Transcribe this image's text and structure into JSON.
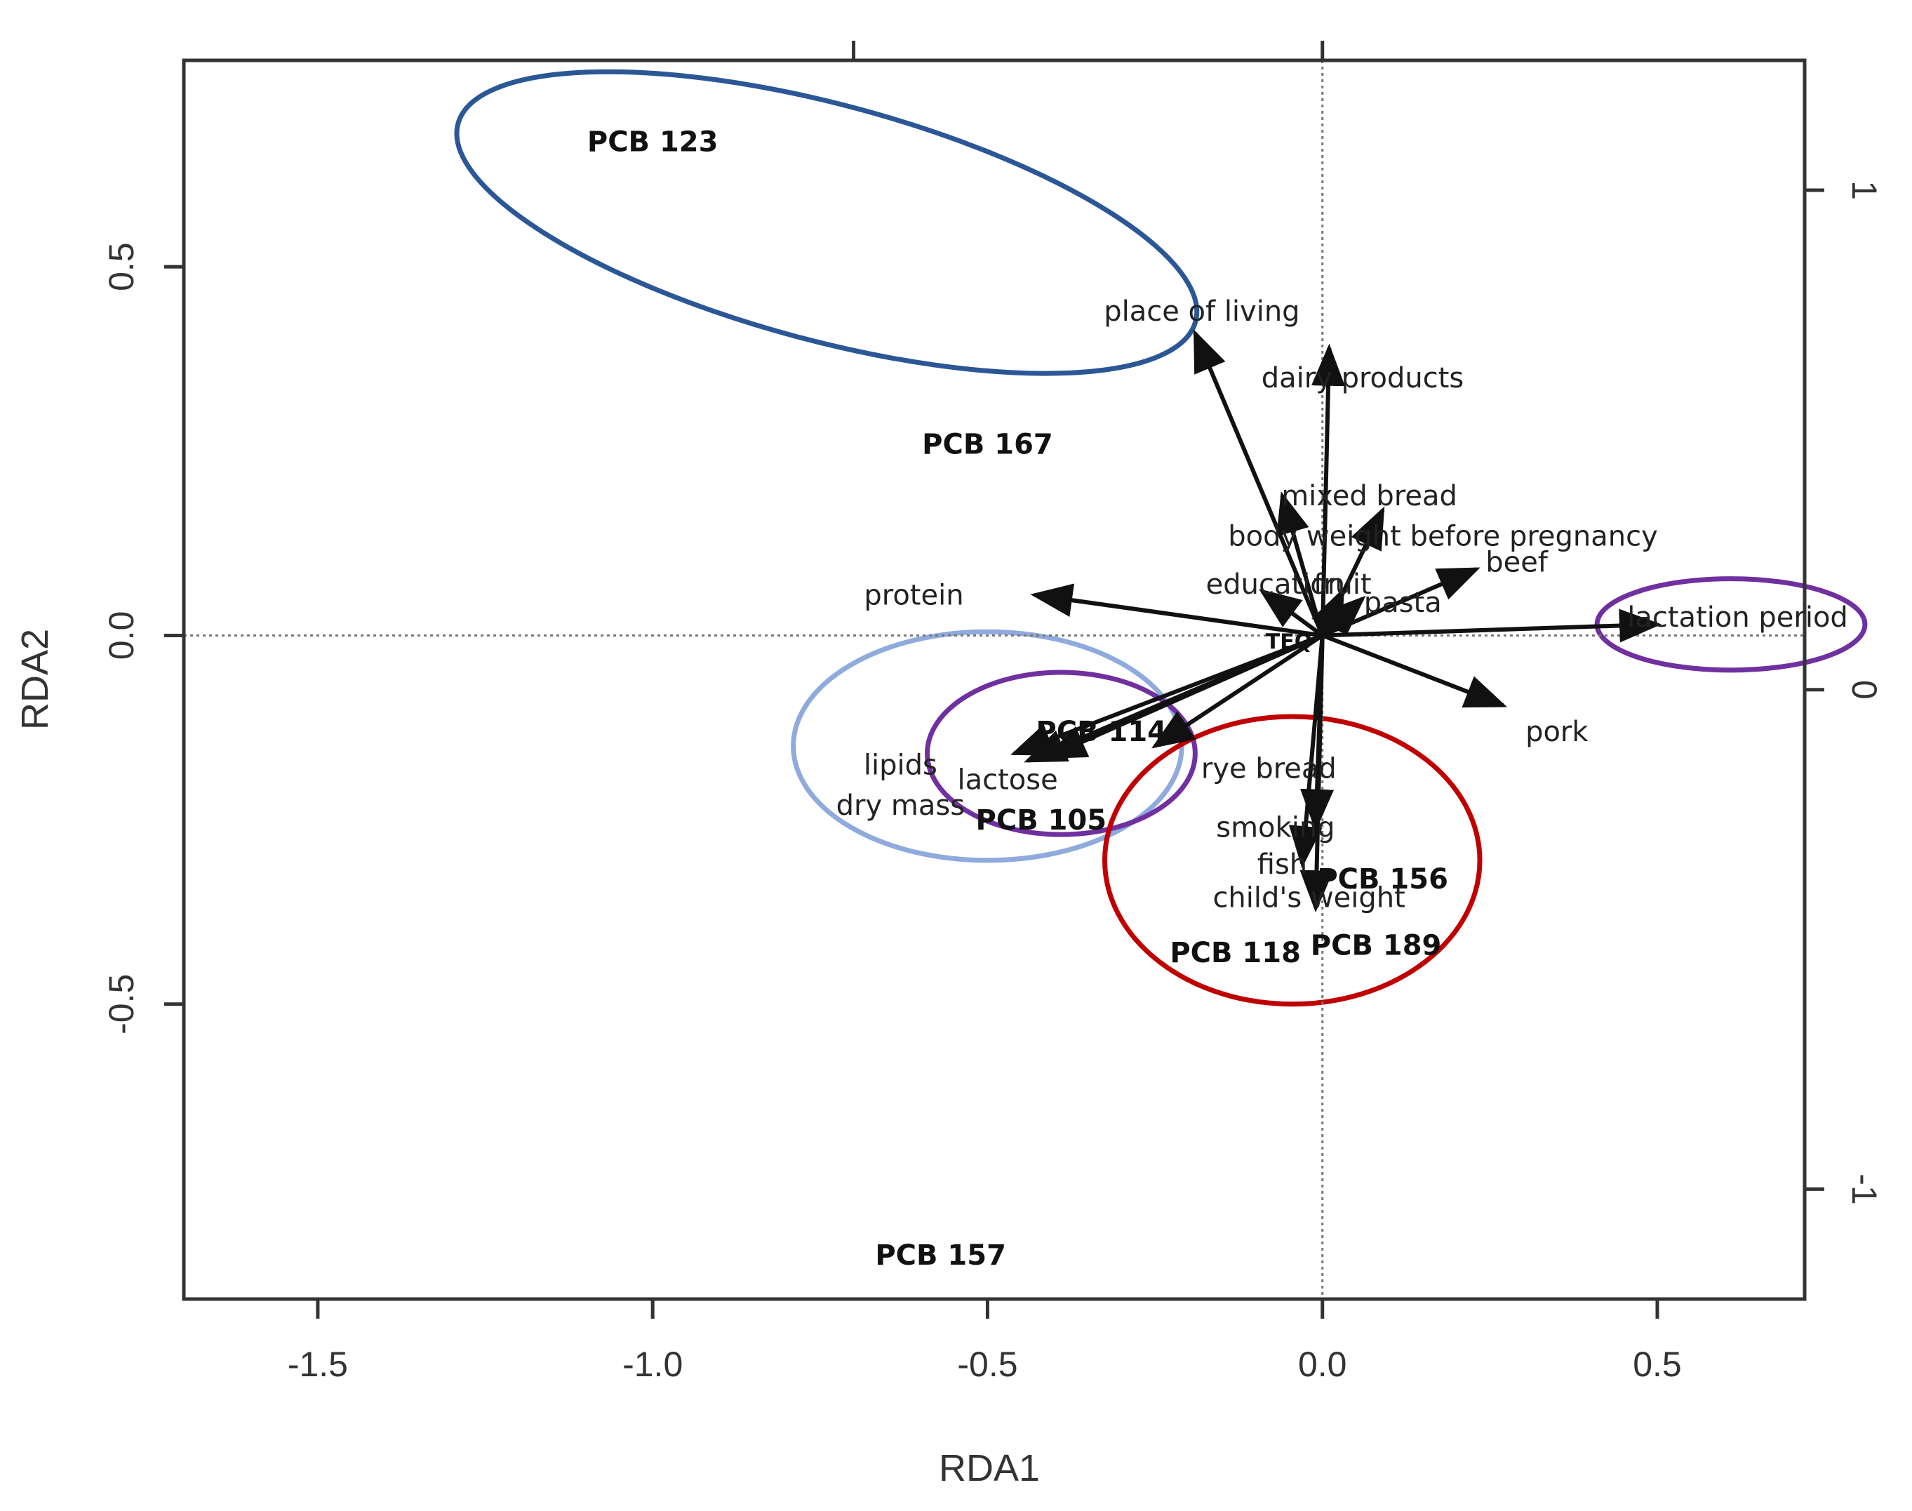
{
  "chart_data": {
    "type": "scatter",
    "title": "",
    "xlabel": "RDA1",
    "ylabel": "RDA2",
    "xlim": [
      -1.7,
      0.72
    ],
    "ylim": [
      -0.9,
      0.78
    ],
    "x_ticks": [
      -1.5,
      -1.0,
      -0.5,
      0.0,
      0.5
    ],
    "x_tick_labels": [
      "-1.5",
      "-1.0",
      "-0.5",
      "0.0",
      "0.5"
    ],
    "y_ticks": [
      -0.5,
      0.0,
      0.5
    ],
    "y_tick_labels": [
      "-0.5",
      "0.0",
      "0.5"
    ],
    "secondary_ticks": [
      -1,
      0,
      1
    ],
    "secondary_tick_labels": [
      "-1",
      "0",
      "1"
    ],
    "secondary_axis_range": [
      -1.22,
      1.26
    ],
    "reference_lines": [
      {
        "axis": "x",
        "value": 0
      },
      {
        "axis": "y",
        "value": 0
      }
    ],
    "vectors": [
      {
        "label": "place of living",
        "x": -0.19,
        "y": 0.41,
        "label_x": -0.18,
        "label_y": 0.44
      },
      {
        "label": "dairy products",
        "x": 0.01,
        "y": 0.39,
        "label_x": 0.06,
        "label_y": 0.35
      },
      {
        "label": "mixed bread",
        "x": -0.06,
        "y": 0.19,
        "label_x": 0.07,
        "label_y": 0.19
      },
      {
        "label": "body weight before pregnancy",
        "x": 0.09,
        "y": 0.17,
        "label_x": 0.18,
        "label_y": 0.135
      },
      {
        "label": "beef",
        "x": 0.23,
        "y": 0.09,
        "label_x": 0.29,
        "label_y": 0.1
      },
      {
        "label": "pasta",
        "x": 0.06,
        "y": 0.05,
        "label_x": 0.12,
        "label_y": 0.045
      },
      {
        "label": "education",
        "x": -0.09,
        "y": 0.06,
        "label_x": -0.07,
        "label_y": 0.07
      },
      {
        "label": "fruit",
        "x": 0.03,
        "y": 0.06,
        "label_x": 0.03,
        "label_y": 0.07
      },
      {
        "label": "protein",
        "x": -0.43,
        "y": 0.055,
        "label_x": -0.61,
        "label_y": 0.055
      },
      {
        "label": "lactation period",
        "x": 0.5,
        "y": 0.015,
        "label_x": 0.62,
        "label_y": 0.025
      },
      {
        "label": "pork",
        "x": 0.27,
        "y": -0.095,
        "label_x": 0.35,
        "label_y": -0.13
      },
      {
        "label": "rye bread",
        "x": -0.25,
        "y": -0.15,
        "label_x": -0.08,
        "label_y": -0.18
      },
      {
        "label": "lipids",
        "x": -0.46,
        "y": -0.16,
        "label_x": -0.63,
        "label_y": -0.175
      },
      {
        "label": "lactose",
        "x": -0.41,
        "y": -0.165,
        "label_x": -0.47,
        "label_y": -0.195
      },
      {
        "label": "dry mass",
        "x": -0.44,
        "y": -0.17,
        "label_x": -0.63,
        "label_y": -0.23
      },
      {
        "label": "smoking",
        "x": -0.01,
        "y": -0.26,
        "label_x": -0.07,
        "label_y": -0.26
      },
      {
        "label": "fish",
        "x": -0.03,
        "y": -0.31,
        "label_x": -0.06,
        "label_y": -0.31
      },
      {
        "label": "child's weight",
        "x": -0.01,
        "y": -0.37,
        "label_x": -0.02,
        "label_y": -0.355
      }
    ],
    "species": [
      {
        "label": "PCB 123",
        "x": -1.0,
        "y": 0.67
      },
      {
        "label": "PCB 167",
        "x": -0.5,
        "y": 0.26
      },
      {
        "label": "PCB 114",
        "x": -0.33,
        "y": -0.13
      },
      {
        "label": "PCB 105",
        "x": -0.42,
        "y": -0.25
      },
      {
        "label": "PCB 156",
        "x": 0.09,
        "y": -0.33
      },
      {
        "label": "PCB 189",
        "x": 0.08,
        "y": -0.42
      },
      {
        "label": "PCB 118",
        "x": -0.13,
        "y": -0.43
      },
      {
        "label": "PCB 157",
        "x": -0.57,
        "y": -0.84
      },
      {
        "label": "TEQ",
        "x": -0.05,
        "y": -0.005
      }
    ],
    "groupings": [
      {
        "color": "#2b5797",
        "cx": -0.74,
        "cy": 0.56,
        "rx": 0.57,
        "ry": 0.16,
        "rotation": 15
      },
      {
        "color": "#8faadc",
        "cx": -0.5,
        "cy": -0.15,
        "rx": 0.29,
        "ry": 0.155,
        "rotation": 0
      },
      {
        "color": "#7030a0",
        "cx": -0.39,
        "cy": -0.16,
        "rx": 0.2,
        "ry": 0.11,
        "rotation": 0
      },
      {
        "color": "#7030a0",
        "cx": 0.61,
        "cy": 0.015,
        "rx": 0.2,
        "ry": 0.062,
        "rotation": 0
      },
      {
        "color": "#c00000",
        "cx": -0.045,
        "cy": -0.305,
        "rx": 0.28,
        "ry": 0.195,
        "rotation": 0
      }
    ],
    "colors": {
      "axis": "#333333",
      "arrow": "#111111",
      "reference": "#777777"
    }
  }
}
